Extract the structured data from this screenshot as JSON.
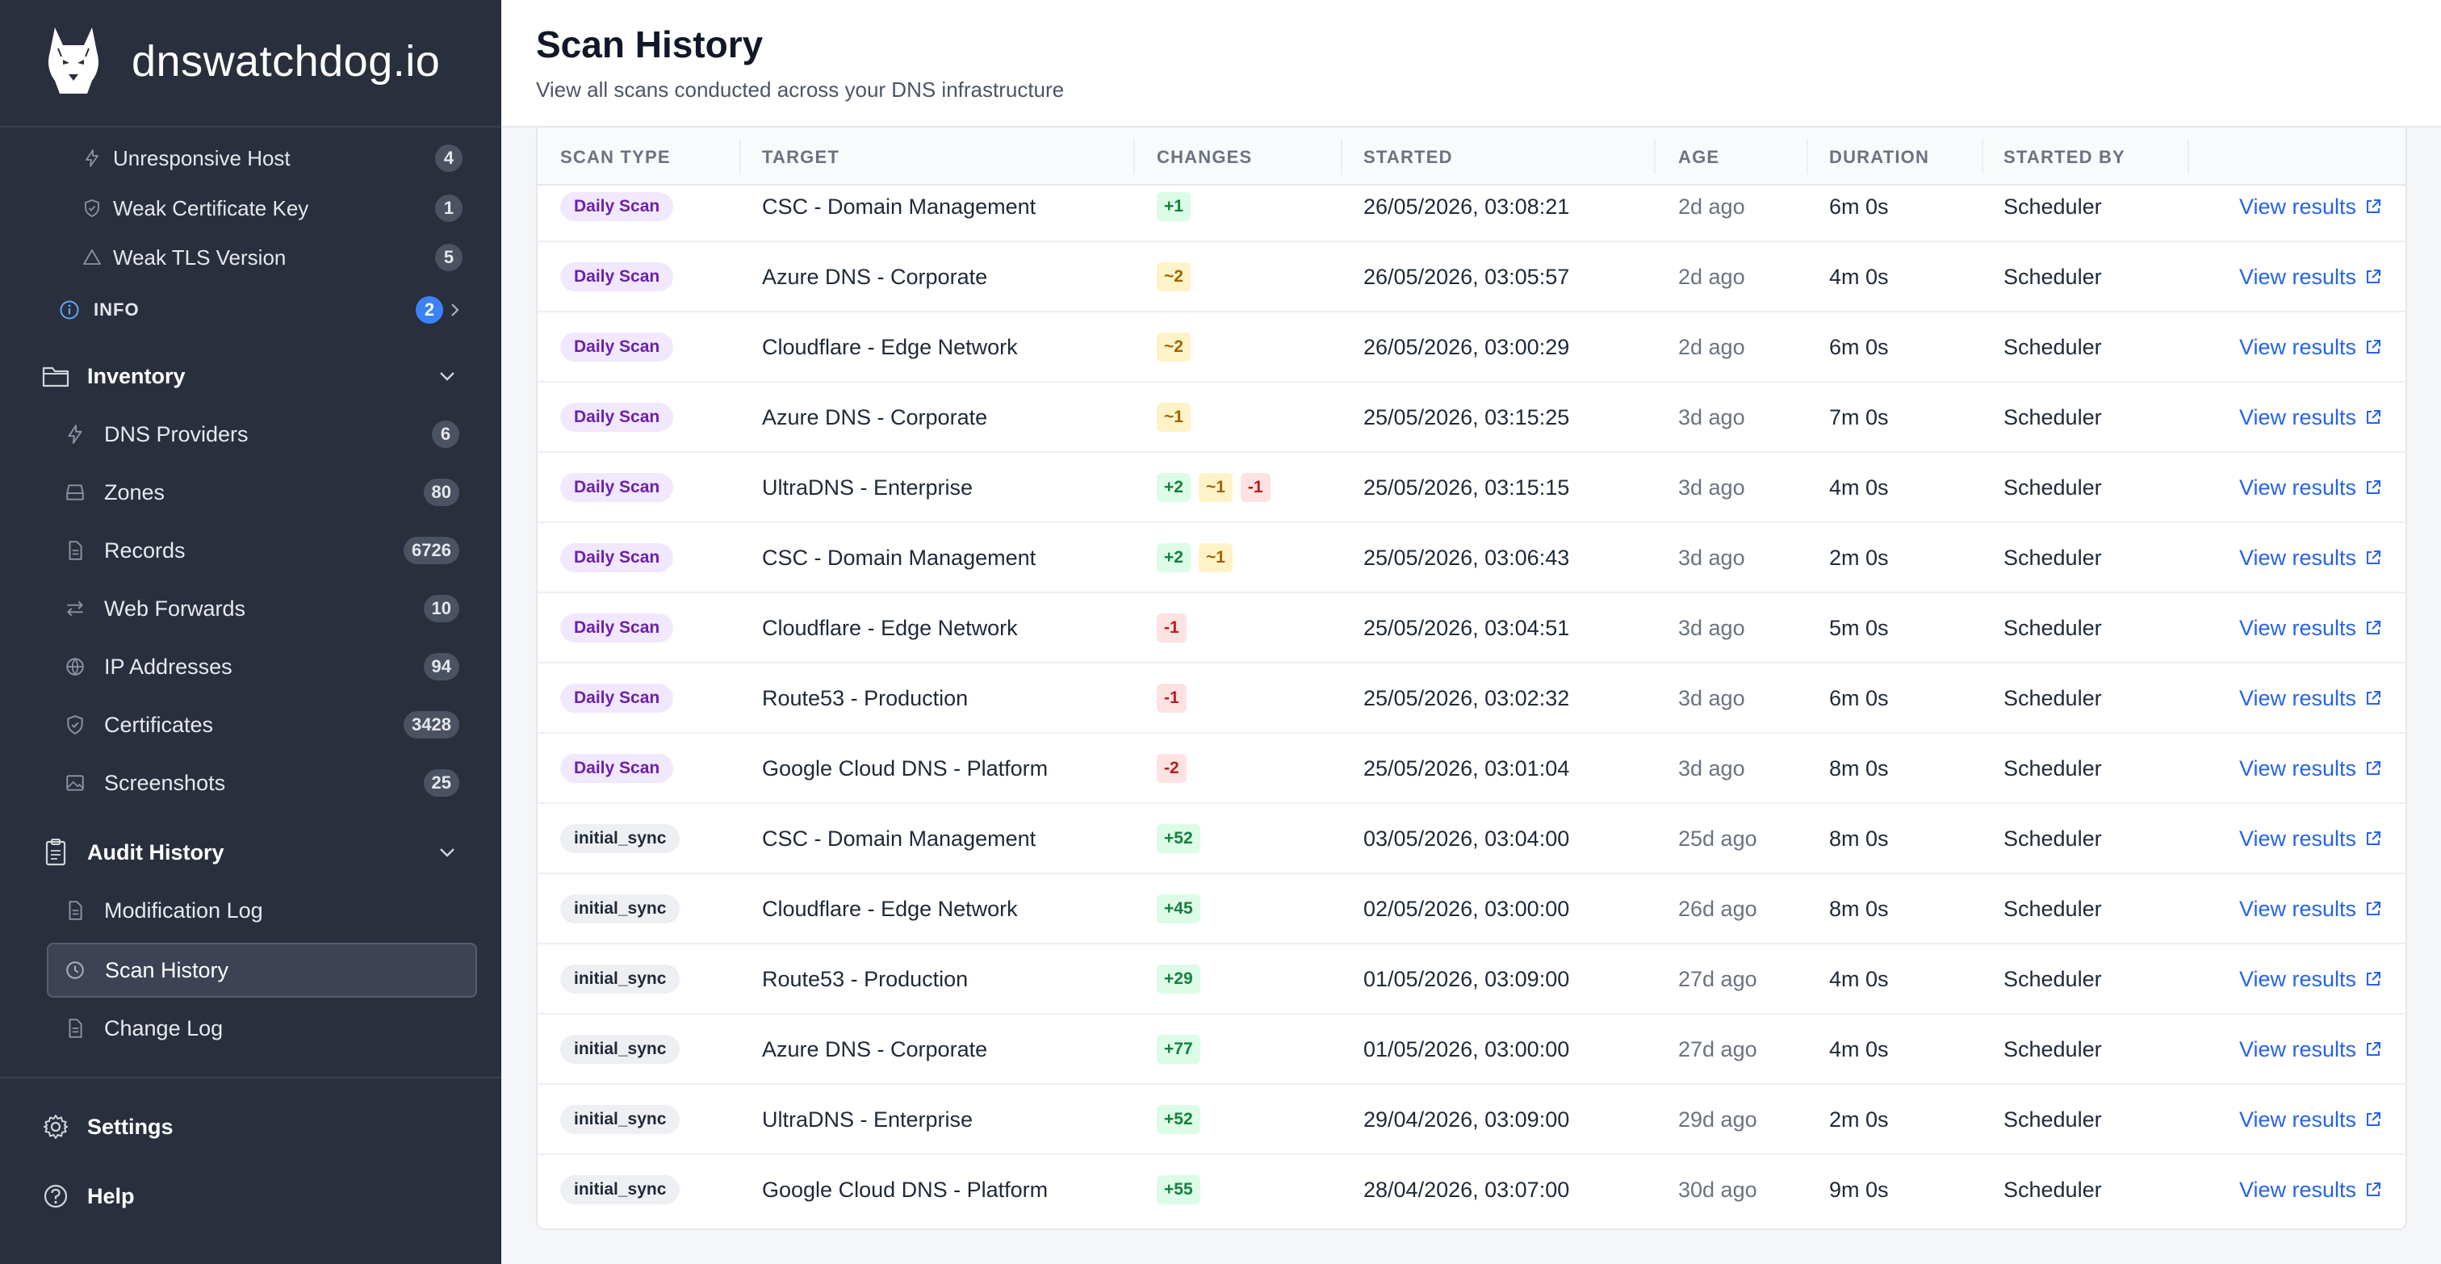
{
  "brand": {
    "name": "dnswatchdog.io"
  },
  "sidebar": {
    "alerts": [
      {
        "label": "Unresponsive Host",
        "count": "4",
        "icon": "bolt-icon"
      },
      {
        "label": "Weak Certificate Key",
        "count": "1",
        "icon": "shield-icon"
      },
      {
        "label": "Weak TLS Version",
        "count": "5",
        "icon": "warning-triangle-icon"
      }
    ],
    "info": {
      "label": "INFO",
      "count": "2"
    },
    "inventory": {
      "label": "Inventory",
      "items": [
        {
          "label": "DNS Providers",
          "count": "6"
        },
        {
          "label": "Zones",
          "count": "80"
        },
        {
          "label": "Records",
          "count": "6726"
        },
        {
          "label": "Web Forwards",
          "count": "10"
        },
        {
          "label": "IP Addresses",
          "count": "94"
        },
        {
          "label": "Certificates",
          "count": "3428"
        },
        {
          "label": "Screenshots",
          "count": "25"
        }
      ]
    },
    "audit": {
      "label": "Audit History",
      "items": [
        {
          "label": "Modification Log"
        },
        {
          "label": "Scan History"
        },
        {
          "label": "Change Log"
        }
      ]
    },
    "settings": "Settings",
    "help": "Help"
  },
  "page": {
    "title": "Scan History",
    "subtitle": "View all scans conducted across your DNS infrastructure"
  },
  "table": {
    "columns": [
      "SCAN TYPE",
      "TARGET",
      "CHANGES",
      "STARTED",
      "AGE",
      "DURATION",
      "STARTED BY"
    ],
    "link_label": "View results",
    "rows": [
      {
        "type": "Daily Scan",
        "target": "CSC - Domain Management",
        "changes": [
          {
            "kind": "add",
            "text": "+1"
          }
        ],
        "started": "26/05/2026, 03:08:21",
        "age": "2d ago",
        "duration": "6m 0s",
        "by": "Scheduler"
      },
      {
        "type": "Daily Scan",
        "target": "Azure DNS - Corporate",
        "changes": [
          {
            "kind": "mod",
            "text": "~2"
          }
        ],
        "started": "26/05/2026, 03:05:57",
        "age": "2d ago",
        "duration": "4m 0s",
        "by": "Scheduler"
      },
      {
        "type": "Daily Scan",
        "target": "Cloudflare - Edge Network",
        "changes": [
          {
            "kind": "mod",
            "text": "~2"
          }
        ],
        "started": "26/05/2026, 03:00:29",
        "age": "2d ago",
        "duration": "6m 0s",
        "by": "Scheduler"
      },
      {
        "type": "Daily Scan",
        "target": "Azure DNS - Corporate",
        "changes": [
          {
            "kind": "mod",
            "text": "~1"
          }
        ],
        "started": "25/05/2026, 03:15:25",
        "age": "3d ago",
        "duration": "7m 0s",
        "by": "Scheduler"
      },
      {
        "type": "Daily Scan",
        "target": "UltraDNS - Enterprise",
        "changes": [
          {
            "kind": "add",
            "text": "+2"
          },
          {
            "kind": "mod",
            "text": "~1"
          },
          {
            "kind": "del",
            "text": "-1"
          }
        ],
        "started": "25/05/2026, 03:15:15",
        "age": "3d ago",
        "duration": "4m 0s",
        "by": "Scheduler"
      },
      {
        "type": "Daily Scan",
        "target": "CSC - Domain Management",
        "changes": [
          {
            "kind": "add",
            "text": "+2"
          },
          {
            "kind": "mod",
            "text": "~1"
          }
        ],
        "started": "25/05/2026, 03:06:43",
        "age": "3d ago",
        "duration": "2m 0s",
        "by": "Scheduler"
      },
      {
        "type": "Daily Scan",
        "target": "Cloudflare - Edge Network",
        "changes": [
          {
            "kind": "del",
            "text": "-1"
          }
        ],
        "started": "25/05/2026, 03:04:51",
        "age": "3d ago",
        "duration": "5m 0s",
        "by": "Scheduler"
      },
      {
        "type": "Daily Scan",
        "target": "Route53 - Production",
        "changes": [
          {
            "kind": "del",
            "text": "-1"
          }
        ],
        "started": "25/05/2026, 03:02:32",
        "age": "3d ago",
        "duration": "6m 0s",
        "by": "Scheduler"
      },
      {
        "type": "Daily Scan",
        "target": "Google Cloud DNS - Platform",
        "changes": [
          {
            "kind": "del",
            "text": "-2"
          }
        ],
        "started": "25/05/2026, 03:01:04",
        "age": "3d ago",
        "duration": "8m 0s",
        "by": "Scheduler"
      },
      {
        "type": "initial_sync",
        "target": "CSC - Domain Management",
        "changes": [
          {
            "kind": "add",
            "text": "+52"
          }
        ],
        "started": "03/05/2026, 03:04:00",
        "age": "25d ago",
        "duration": "8m 0s",
        "by": "Scheduler"
      },
      {
        "type": "initial_sync",
        "target": "Cloudflare - Edge Network",
        "changes": [
          {
            "kind": "add",
            "text": "+45"
          }
        ],
        "started": "02/05/2026, 03:00:00",
        "age": "26d ago",
        "duration": "8m 0s",
        "by": "Scheduler"
      },
      {
        "type": "initial_sync",
        "target": "Route53 - Production",
        "changes": [
          {
            "kind": "add",
            "text": "+29"
          }
        ],
        "started": "01/05/2026, 03:09:00",
        "age": "27d ago",
        "duration": "4m 0s",
        "by": "Scheduler"
      },
      {
        "type": "initial_sync",
        "target": "Azure DNS - Corporate",
        "changes": [
          {
            "kind": "add",
            "text": "+77"
          }
        ],
        "started": "01/05/2026, 03:00:00",
        "age": "27d ago",
        "duration": "4m 0s",
        "by": "Scheduler"
      },
      {
        "type": "initial_sync",
        "target": "UltraDNS - Enterprise",
        "changes": [
          {
            "kind": "add",
            "text": "+52"
          }
        ],
        "started": "29/04/2026, 03:09:00",
        "age": "29d ago",
        "duration": "2m 0s",
        "by": "Scheduler"
      },
      {
        "type": "initial_sync",
        "target": "Google Cloud DNS - Platform",
        "changes": [
          {
            "kind": "add",
            "text": "+55"
          }
        ],
        "started": "28/04/2026, 03:07:00",
        "age": "30d ago",
        "duration": "9m 0s",
        "by": "Scheduler"
      }
    ]
  },
  "colors": {
    "sidebar_bg": "#2a2f3d",
    "accent_blue": "#2563eb",
    "info_badge": "#3b82f6",
    "added": "#15803d",
    "modified": "#a16207",
    "removed": "#b91c1c",
    "daily_badge": "#6b21a8"
  }
}
